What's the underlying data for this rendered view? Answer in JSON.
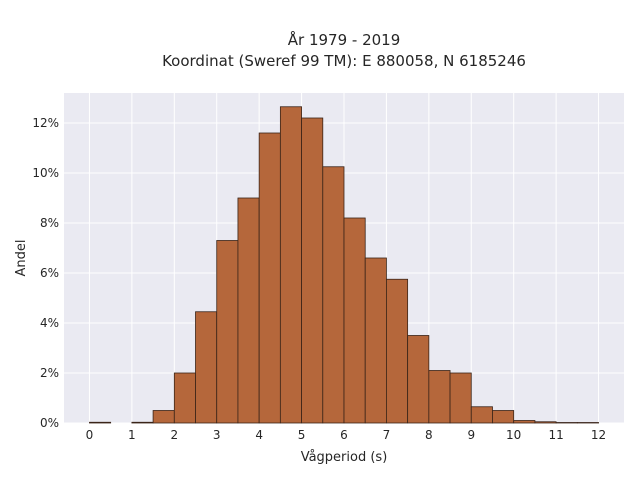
{
  "chart_data": {
    "type": "bar",
    "title_line1": "År 1979 - 2019",
    "title_line2": "Koordinat (Sweref 99 TM): E 880058, N 6185246",
    "xlabel": "Vågperiod (s)",
    "ylabel": "Andel",
    "xlim": [
      -0.6,
      12.6
    ],
    "ylim": [
      0,
      13.2
    ],
    "x_ticks": [
      0,
      1,
      2,
      3,
      4,
      5,
      6,
      7,
      8,
      9,
      10,
      11,
      12
    ],
    "y_ticks": [
      0,
      2,
      4,
      6,
      8,
      10,
      12
    ],
    "y_tick_labels": [
      "0%",
      "2%",
      "4%",
      "6%",
      "8%",
      "10%",
      "12%"
    ],
    "bin_width": 0.5,
    "bins": [
      {
        "x_start": 0.0,
        "value": 0.03
      },
      {
        "x_start": 1.0,
        "value": 0.03
      },
      {
        "x_start": 1.5,
        "value": 0.5
      },
      {
        "x_start": 2.0,
        "value": 2.0
      },
      {
        "x_start": 2.5,
        "value": 4.45
      },
      {
        "x_start": 3.0,
        "value": 7.3
      },
      {
        "x_start": 3.5,
        "value": 9.0
      },
      {
        "x_start": 4.0,
        "value": 11.6
      },
      {
        "x_start": 4.5,
        "value": 12.65
      },
      {
        "x_start": 5.0,
        "value": 12.2
      },
      {
        "x_start": 5.5,
        "value": 10.25
      },
      {
        "x_start": 6.0,
        "value": 8.2
      },
      {
        "x_start": 6.5,
        "value": 6.6
      },
      {
        "x_start": 7.0,
        "value": 5.75
      },
      {
        "x_start": 7.5,
        "value": 3.5
      },
      {
        "x_start": 8.0,
        "value": 2.1
      },
      {
        "x_start": 8.5,
        "value": 2.0
      },
      {
        "x_start": 9.0,
        "value": 0.65
      },
      {
        "x_start": 9.5,
        "value": 0.5
      },
      {
        "x_start": 10.0,
        "value": 0.1
      },
      {
        "x_start": 10.5,
        "value": 0.05
      },
      {
        "x_start": 11.0,
        "value": 0.02
      },
      {
        "x_start": 11.5,
        "value": 0.02
      }
    ],
    "bar_color": "#b5673b",
    "bar_edge_color": "#3a2418",
    "background_color": "#eaeaf2",
    "grid": true,
    "grid_color": "#ffffff"
  }
}
